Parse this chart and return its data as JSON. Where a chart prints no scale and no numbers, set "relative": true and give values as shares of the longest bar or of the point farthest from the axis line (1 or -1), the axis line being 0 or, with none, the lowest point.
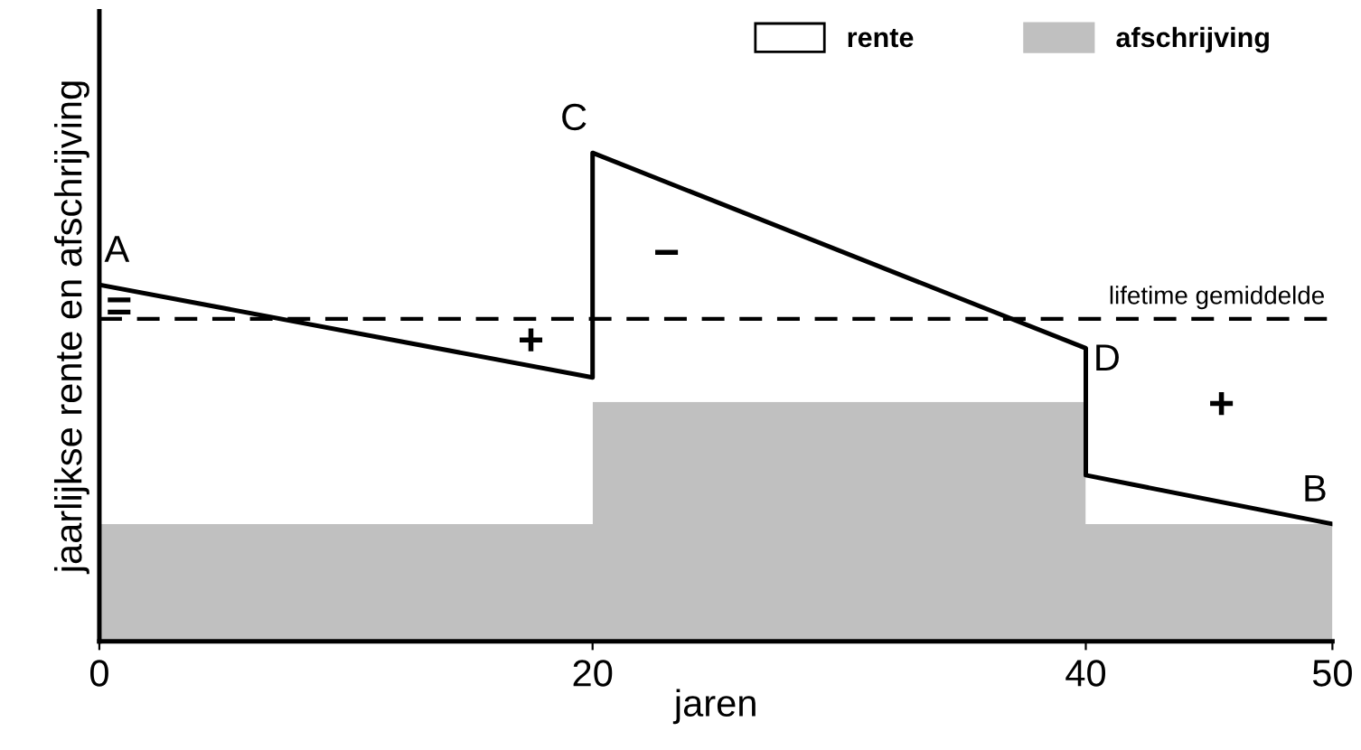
{
  "chart_data": {
    "type": "area",
    "stacked": true,
    "relative": true,
    "xlabel": "jaren",
    "ylabel": "jaarlijkse rente en afschrijving",
    "x": [
      0,
      20,
      20,
      40,
      40,
      50
    ],
    "series": [
      {
        "name": "afschrijving",
        "color": "#c0c0c0",
        "values": [
          0.24,
          0.24,
          0.49,
          0.49,
          0.24,
          0.24
        ]
      },
      {
        "name": "rente",
        "color": "#ffffff",
        "values": [
          0.49,
          0.3,
          0.51,
          0.11,
          0.1,
          0.0
        ]
      }
    ],
    "xlim": [
      0,
      50
    ],
    "xticks": [
      0,
      20,
      40,
      50
    ],
    "ref_lines": [
      {
        "axis": "y",
        "value": 0.66,
        "label": "lifetime gemiddelde",
        "color": "#000000",
        "line_style": "dashed"
      }
    ],
    "annotations": [
      {
        "text": "A",
        "x": 0,
        "y": 0.73
      },
      {
        "text": "C",
        "x": 20,
        "y": 1.0
      },
      {
        "text": "D",
        "x": 40,
        "y": 0.6
      },
      {
        "text": "B",
        "x": 50,
        "y": 0.24
      },
      "=",
      "+",
      "−",
      "+"
    ],
    "legend": "top right",
    "grid": false
  }
}
